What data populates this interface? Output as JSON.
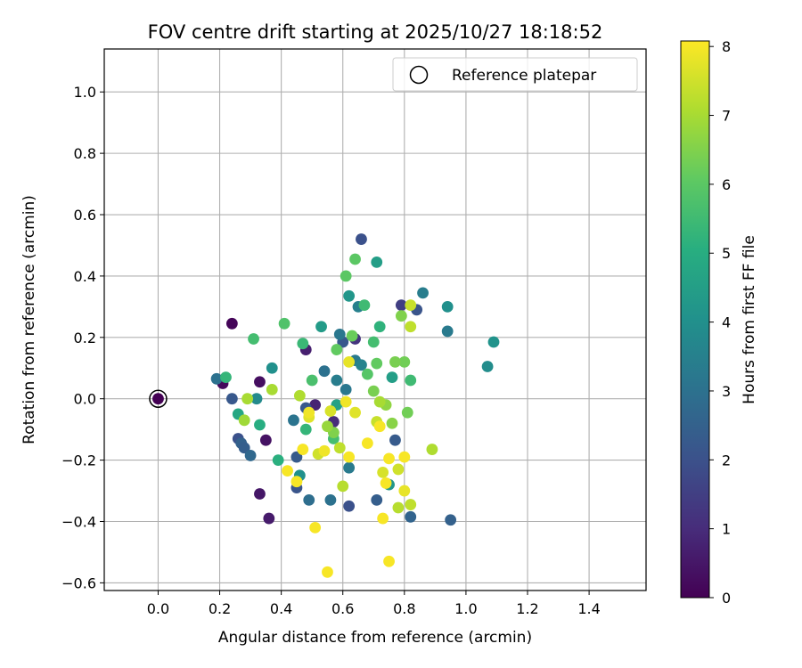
{
  "chart_data": {
    "type": "scatter",
    "title": "FOV centre drift starting at 2025/10/27 18:18:52",
    "xlabel": "Angular distance from reference (arcmin)",
    "ylabel": "Rotation from reference (arcmin)",
    "xlim": [
      -0.175,
      1.585
    ],
    "ylim": [
      -0.625,
      1.14
    ],
    "xticks": [
      0.0,
      0.2,
      0.4,
      0.6,
      0.8,
      1.0,
      1.2,
      1.4
    ],
    "xtick_labels": [
      "0.0",
      "0.2",
      "0.4",
      "0.6",
      "0.8",
      "1.0",
      "1.2",
      "1.4"
    ],
    "yticks": [
      -0.6,
      -0.4,
      -0.2,
      0.0,
      0.2,
      0.4,
      0.6,
      0.8,
      1.0
    ],
    "ytick_labels": [
      "−0.6",
      "−0.4",
      "−0.2",
      "0.0",
      "0.2",
      "0.4",
      "0.6",
      "0.8",
      "1.0"
    ],
    "grid": true,
    "legend": {
      "position": "top-right",
      "label": "Reference platepar"
    },
    "reference_point": {
      "x": 0.0,
      "y": 0.0
    },
    "colorbar": {
      "label": "Hours from first FF file",
      "min": 0,
      "max": 8.08,
      "ticks": [
        0,
        1,
        2,
        3,
        4,
        5,
        6,
        7,
        8
      ],
      "tick_labels": [
        "0",
        "1",
        "2",
        "3",
        "4",
        "5",
        "6",
        "7",
        "8"
      ],
      "colormap": "viridis"
    },
    "points": [
      {
        "x": 0.0,
        "y": 0.0,
        "h": 0.0
      },
      {
        "x": 0.24,
        "y": 0.245,
        "h": 0.1
      },
      {
        "x": 0.21,
        "y": 0.05,
        "h": 0.2
      },
      {
        "x": 0.33,
        "y": 0.055,
        "h": 0.3
      },
      {
        "x": 0.35,
        "y": -0.135,
        "h": 0.4
      },
      {
        "x": 0.33,
        "y": -0.31,
        "h": 0.5
      },
      {
        "x": 0.36,
        "y": -0.39,
        "h": 0.6
      },
      {
        "x": 0.48,
        "y": 0.16,
        "h": 0.7
      },
      {
        "x": 0.51,
        "y": -0.02,
        "h": 0.8
      },
      {
        "x": 0.57,
        "y": -0.075,
        "h": 1.0
      },
      {
        "x": 0.64,
        "y": 0.195,
        "h": 1.2
      },
      {
        "x": 0.79,
        "y": 0.305,
        "h": 1.5
      },
      {
        "x": 0.66,
        "y": 0.52,
        "h": 2.0
      },
      {
        "x": 0.26,
        "y": -0.13,
        "h": 2.0
      },
      {
        "x": 0.62,
        "y": -0.35,
        "h": 2.0
      },
      {
        "x": 0.24,
        "y": 0.0,
        "h": 2.2
      },
      {
        "x": 0.45,
        "y": -0.29,
        "h": 2.1
      },
      {
        "x": 0.48,
        "y": -0.03,
        "h": 2.2
      },
      {
        "x": 0.45,
        "y": -0.19,
        "h": 2.3
      },
      {
        "x": 0.71,
        "y": -0.33,
        "h": 2.4
      },
      {
        "x": 0.84,
        "y": 0.29,
        "h": 2.1
      },
      {
        "x": 0.95,
        "y": -0.395,
        "h": 2.5
      },
      {
        "x": 0.82,
        "y": -0.385,
        "h": 2.6
      },
      {
        "x": 0.77,
        "y": -0.135,
        "h": 2.3
      },
      {
        "x": 0.6,
        "y": 0.185,
        "h": 2.2
      },
      {
        "x": 0.27,
        "y": -0.145,
        "h": 2.5
      },
      {
        "x": 0.28,
        "y": -0.16,
        "h": 2.4
      },
      {
        "x": 0.3,
        "y": -0.185,
        "h": 2.7
      },
      {
        "x": 0.49,
        "y": -0.33,
        "h": 2.9
      },
      {
        "x": 0.56,
        "y": -0.33,
        "h": 3.0
      },
      {
        "x": 0.44,
        "y": -0.07,
        "h": 3.1
      },
      {
        "x": 0.54,
        "y": 0.09,
        "h": 3.0
      },
      {
        "x": 0.59,
        "y": 0.21,
        "h": 3.2
      },
      {
        "x": 0.62,
        "y": -0.225,
        "h": 3.3
      },
      {
        "x": 0.58,
        "y": 0.06,
        "h": 3.4
      },
      {
        "x": 0.61,
        "y": 0.03,
        "h": 3.2
      },
      {
        "x": 0.65,
        "y": 0.3,
        "h": 3.5
      },
      {
        "x": 0.64,
        "y": 0.125,
        "h": 3.3
      },
      {
        "x": 0.66,
        "y": 0.11,
        "h": 3.6
      },
      {
        "x": 0.19,
        "y": 0.065,
        "h": 3.0
      },
      {
        "x": 0.94,
        "y": 0.22,
        "h": 3.3
      },
      {
        "x": 0.86,
        "y": 0.345,
        "h": 3.4
      },
      {
        "x": 1.07,
        "y": 0.105,
        "h": 3.9
      },
      {
        "x": 1.09,
        "y": 0.185,
        "h": 4.1
      },
      {
        "x": 0.94,
        "y": 0.3,
        "h": 4.0
      },
      {
        "x": 0.62,
        "y": 0.335,
        "h": 4.2
      },
      {
        "x": 0.32,
        "y": 0.0,
        "h": 3.8
      },
      {
        "x": 0.37,
        "y": 0.1,
        "h": 4.0
      },
      {
        "x": 0.46,
        "y": -0.25,
        "h": 4.0
      },
      {
        "x": 0.53,
        "y": 0.235,
        "h": 4.4
      },
      {
        "x": 0.71,
        "y": 0.445,
        "h": 4.5
      },
      {
        "x": 0.75,
        "y": -0.28,
        "h": 4.2
      },
      {
        "x": 0.76,
        "y": 0.07,
        "h": 4.5
      },
      {
        "x": 0.58,
        "y": -0.02,
        "h": 4.6
      },
      {
        "x": 0.26,
        "y": -0.05,
        "h": 4.8
      },
      {
        "x": 0.33,
        "y": -0.085,
        "h": 5.0
      },
      {
        "x": 0.39,
        "y": -0.2,
        "h": 5.1
      },
      {
        "x": 0.22,
        "y": 0.07,
        "h": 5.3
      },
      {
        "x": 0.47,
        "y": 0.18,
        "h": 5.4
      },
      {
        "x": 0.72,
        "y": 0.235,
        "h": 5.2
      },
      {
        "x": 0.67,
        "y": 0.305,
        "h": 5.5
      },
      {
        "x": 0.82,
        "y": 0.06,
        "h": 5.5
      },
      {
        "x": 0.7,
        "y": 0.185,
        "h": 5.6
      },
      {
        "x": 0.57,
        "y": -0.13,
        "h": 5.6
      },
      {
        "x": 0.68,
        "y": 0.08,
        "h": 5.9
      },
      {
        "x": 0.48,
        "y": -0.1,
        "h": 5.3
      },
      {
        "x": 0.5,
        "y": 0.06,
        "h": 5.7
      },
      {
        "x": 0.41,
        "y": 0.245,
        "h": 5.8
      },
      {
        "x": 0.31,
        "y": 0.195,
        "h": 5.6
      },
      {
        "x": 0.64,
        "y": 0.455,
        "h": 6.0
      },
      {
        "x": 0.61,
        "y": 0.4,
        "h": 6.0
      },
      {
        "x": 0.58,
        "y": 0.16,
        "h": 6.1
      },
      {
        "x": 0.63,
        "y": 0.205,
        "h": 6.2
      },
      {
        "x": 0.71,
        "y": 0.115,
        "h": 6.1
      },
      {
        "x": 0.8,
        "y": 0.12,
        "h": 6.3
      },
      {
        "x": 0.81,
        "y": -0.045,
        "h": 6.3
      },
      {
        "x": 0.77,
        "y": 0.12,
        "h": 6.4
      },
      {
        "x": 0.7,
        "y": 0.025,
        "h": 6.4
      },
      {
        "x": 0.57,
        "y": -0.11,
        "h": 6.5
      },
      {
        "x": 0.79,
        "y": 0.27,
        "h": 6.5
      },
      {
        "x": 0.76,
        "y": -0.08,
        "h": 6.6
      },
      {
        "x": 0.74,
        "y": -0.02,
        "h": 6.7
      },
      {
        "x": 0.55,
        "y": -0.09,
        "h": 6.8
      },
      {
        "x": 0.28,
        "y": -0.07,
        "h": 6.9
      },
      {
        "x": 0.37,
        "y": 0.03,
        "h": 7.0
      },
      {
        "x": 0.29,
        "y": 0.0,
        "h": 7.0
      },
      {
        "x": 0.46,
        "y": 0.01,
        "h": 7.1
      },
      {
        "x": 0.6,
        "y": -0.285,
        "h": 7.2
      },
      {
        "x": 0.72,
        "y": -0.01,
        "h": 7.0
      },
      {
        "x": 0.82,
        "y": 0.235,
        "h": 7.3
      },
      {
        "x": 0.82,
        "y": -0.345,
        "h": 7.3
      },
      {
        "x": 0.78,
        "y": -0.355,
        "h": 7.2
      },
      {
        "x": 0.89,
        "y": -0.165,
        "h": 7.1
      },
      {
        "x": 0.52,
        "y": -0.18,
        "h": 7.5
      },
      {
        "x": 0.59,
        "y": -0.16,
        "h": 7.3
      },
      {
        "x": 0.71,
        "y": -0.075,
        "h": 7.4
      },
      {
        "x": 0.73,
        "y": -0.24,
        "h": 7.6
      },
      {
        "x": 0.78,
        "y": -0.23,
        "h": 7.5
      },
      {
        "x": 0.82,
        "y": 0.305,
        "h": 7.4
      },
      {
        "x": 0.49,
        "y": -0.06,
        "h": 7.7
      },
      {
        "x": 0.56,
        "y": -0.04,
        "h": 7.6
      },
      {
        "x": 0.62,
        "y": 0.12,
        "h": 7.8
      },
      {
        "x": 0.64,
        "y": -0.045,
        "h": 7.7
      },
      {
        "x": 0.8,
        "y": -0.3,
        "h": 7.8
      },
      {
        "x": 0.54,
        "y": -0.17,
        "h": 7.9
      },
      {
        "x": 0.42,
        "y": -0.235,
        "h": 8.0
      },
      {
        "x": 0.45,
        "y": -0.27,
        "h": 8.0
      },
      {
        "x": 0.47,
        "y": -0.165,
        "h": 8.0
      },
      {
        "x": 0.49,
        "y": -0.045,
        "h": 7.9
      },
      {
        "x": 0.51,
        "y": -0.42,
        "h": 8.0
      },
      {
        "x": 0.55,
        "y": -0.565,
        "h": 8.0
      },
      {
        "x": 0.61,
        "y": -0.01,
        "h": 7.9
      },
      {
        "x": 0.62,
        "y": -0.19,
        "h": 8.0
      },
      {
        "x": 0.68,
        "y": -0.145,
        "h": 8.0
      },
      {
        "x": 0.72,
        "y": -0.09,
        "h": 8.0
      },
      {
        "x": 0.73,
        "y": -0.39,
        "h": 8.0
      },
      {
        "x": 0.74,
        "y": -0.275,
        "h": 8.0
      },
      {
        "x": 0.75,
        "y": -0.195,
        "h": 8.0
      },
      {
        "x": 0.75,
        "y": -0.53,
        "h": 8.0
      },
      {
        "x": 0.8,
        "y": -0.19,
        "h": 8.0
      }
    ]
  }
}
